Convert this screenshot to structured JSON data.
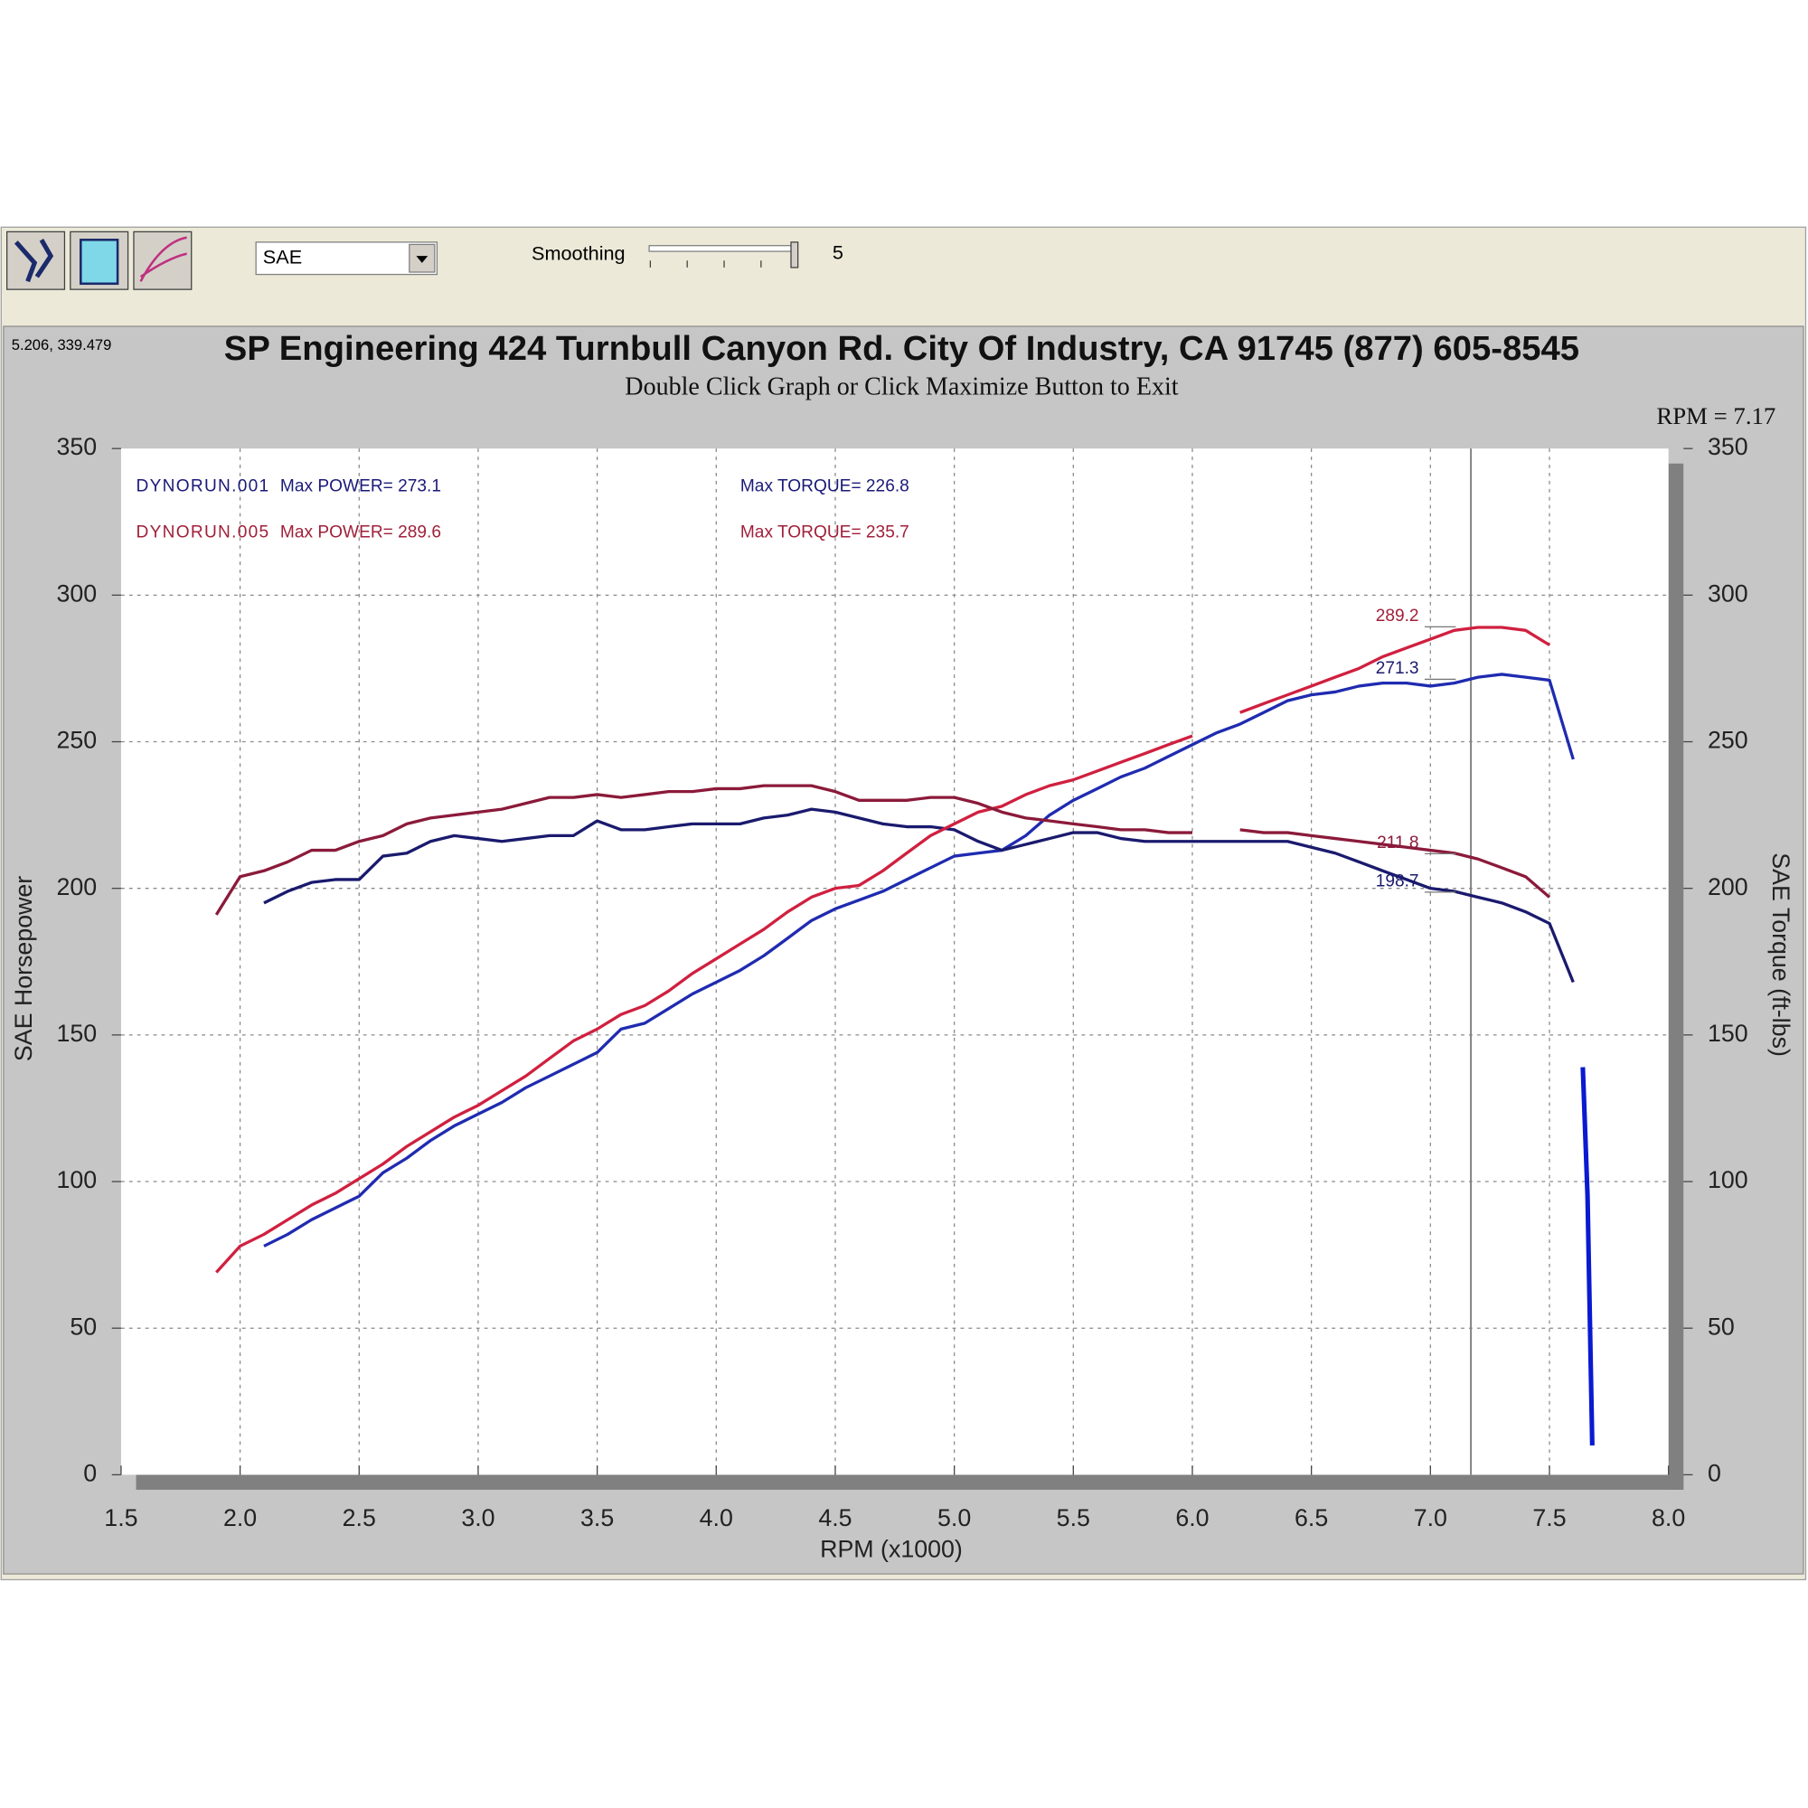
{
  "toolbar": {
    "unit_select": "SAE",
    "smoothing_label": "Smoothing",
    "smoothing_value": 5
  },
  "chart_data": {
    "type": "line",
    "coordinates": "5.206, 339.479",
    "title": "SP Engineering 424 Turnbull Canyon Rd. City Of Industry, CA 91745 (877) 605-8545",
    "subtitle": "Double Click Graph or Click Maximize Button to Exit",
    "cursor": {
      "label": "RPM = 7.17",
      "x": 7.17
    },
    "x_label": "RPM (x1000)",
    "y_label": "SAE Horsepower",
    "y2_label": "SAE Torque (ft-lbs)",
    "xlim": [
      1.5,
      8.0
    ],
    "xticks": [
      1.5,
      {
        "value": 2,
        "label": "2.0"
      },
      2.5,
      {
        "value": 3,
        "label": "3.0"
      },
      3.5,
      {
        "value": 4,
        "label": "4.0"
      },
      4.5,
      {
        "value": 5,
        "label": "5.0"
      },
      5.5,
      {
        "value": 6,
        "label": "6.0"
      },
      6.5,
      {
        "value": 7,
        "label": "7.0"
      },
      7.5,
      {
        "value": 8,
        "label": "8.0"
      }
    ],
    "ylim": [
      0,
      350
    ],
    "yticks": [
      0,
      50,
      100,
      150,
      200,
      250,
      300,
      350
    ],
    "y2lim": [
      0,
      350
    ],
    "y2ticks": [
      0,
      50,
      100,
      150,
      200,
      250,
      300,
      350
    ],
    "grid": true,
    "x": [
      1.9,
      2.0,
      2.1,
      2.2,
      2.3,
      2.4,
      2.5,
      2.6,
      2.7,
      2.8,
      2.9,
      3.0,
      3.1,
      3.2,
      3.3,
      3.4,
      3.5,
      3.6,
      3.7,
      3.8,
      3.9,
      4.0,
      4.1,
      4.2,
      4.3,
      4.4,
      4.5,
      4.6,
      4.7,
      4.8,
      4.9,
      5.0,
      5.1,
      5.2,
      5.3,
      5.4,
      5.5,
      5.6,
      5.7,
      5.8,
      5.9,
      6.0,
      6.1,
      6.2,
      6.3,
      6.4,
      6.5,
      6.6,
      6.7,
      6.8,
      6.9,
      7.0,
      7.1,
      7.2,
      7.3,
      7.4,
      7.5,
      7.6
    ],
    "runs": [
      {
        "name": "DYNORUN.001",
        "color": "#1a1a7a",
        "max_power": "Max POWER= 273.1",
        "max_torque": "Max TORQUE= 226.8",
        "power": {
          "color": "#1f2bb0",
          "values": [
            null,
            null,
            78,
            82,
            87,
            91,
            95,
            103,
            108,
            114,
            119,
            123,
            127,
            132,
            136,
            140,
            144,
            152,
            154,
            159,
            164,
            168,
            172,
            177,
            183,
            189,
            193,
            196,
            199,
            203,
            207,
            211,
            212,
            213,
            218,
            225,
            230,
            234,
            238,
            241,
            245,
            249,
            253,
            256,
            260,
            264,
            266,
            267,
            269,
            270,
            270,
            269,
            270,
            272,
            273,
            272,
            271,
            244
          ]
        },
        "torque": {
          "color": "#1a1a6e",
          "axis": "y2",
          "values": [
            null,
            null,
            195,
            199,
            202,
            203,
            203,
            211,
            212,
            216,
            218,
            217,
            216,
            217,
            218,
            218,
            223,
            220,
            220,
            221,
            222,
            222,
            222,
            224,
            225,
            227,
            226,
            224,
            222,
            221,
            221,
            220,
            216,
            213,
            215,
            217,
            219,
            219,
            217,
            216,
            216,
            216,
            216,
            216,
            216,
            216,
            214,
            212,
            209,
            206,
            203,
            200,
            199,
            197,
            195,
            192,
            188,
            168
          ]
        }
      },
      {
        "name": "DYNORUN.005",
        "color": "#a0203a",
        "max_power": "Max POWER= 289.6",
        "max_torque": "Max TORQUE= 235.7",
        "power": {
          "color": "#d0203f",
          "values": [
            69,
            78,
            82,
            87,
            92,
            96,
            101,
            106,
            112,
            117,
            122,
            126,
            131,
            136,
            142,
            148,
            152,
            157,
            160,
            165,
            171,
            176,
            181,
            186,
            192,
            197,
            200,
            201,
            206,
            212,
            218,
            222,
            226,
            228,
            232,
            235,
            237,
            240,
            243,
            246,
            249,
            252,
            null,
            260,
            263,
            266,
            269,
            272,
            275,
            279,
            282,
            285,
            288,
            289,
            289,
            288,
            283,
            null
          ]
        },
        "torque": {
          "color": "#8b1a3a",
          "axis": "y2",
          "values": [
            191,
            204,
            206,
            209,
            213,
            213,
            216,
            218,
            222,
            224,
            225,
            226,
            227,
            229,
            231,
            231,
            232,
            231,
            232,
            233,
            233,
            234,
            234,
            235,
            235,
            235,
            233,
            230,
            230,
            230,
            231,
            231,
            229,
            226,
            224,
            223,
            222,
            221,
            220,
            220,
            219,
            219,
            null,
            220,
            219,
            219,
            218,
            217,
            216,
            215,
            214,
            213,
            212,
            210,
            207,
            204,
            197,
            null
          ]
        }
      }
    ],
    "trace": {
      "color": "#0a1ad0",
      "x": [
        7.64,
        7.66,
        7.68
      ],
      "values": [
        139,
        95,
        10
      ]
    },
    "peak_labels": [
      {
        "x": 7.0,
        "y": 289.2,
        "color": "#a0203a"
      },
      {
        "x": 7.0,
        "y": 271.3,
        "color": "#1a1a6e"
      },
      {
        "x": 7.0,
        "y": 211.8,
        "color": "#8b1a3a"
      },
      {
        "x": 7.0,
        "y": 198.7,
        "color": "#1a1a6e"
      }
    ]
  }
}
